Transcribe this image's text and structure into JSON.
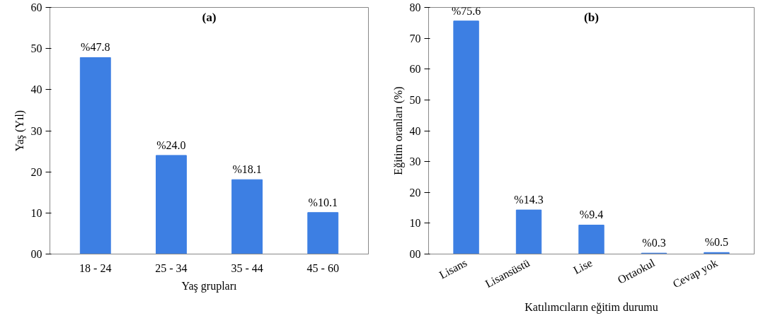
{
  "chart_data": [
    {
      "type": "bar",
      "title": "(a)",
      "xlabel": "Yaş grupları",
      "ylabel": "Yaş (Yıl)",
      "categories": [
        "18 - 24",
        "25 - 34",
        "35 - 44",
        "45 - 60"
      ],
      "values": [
        47.8,
        24.0,
        18.1,
        10.1
      ],
      "value_labels": [
        "%47.8",
        "%24.0",
        "%18.1",
        "%10.1"
      ],
      "color": "#3d7fe3",
      "ylim": [
        0,
        60
      ],
      "yticks": [
        {
          "value": 0,
          "label": "00"
        },
        10,
        20,
        30,
        40,
        50,
        60
      ],
      "grid": false
    },
    {
      "type": "bar",
      "title": "(b)",
      "xlabel": "Katılımcıların eğitim durumu",
      "ylabel": "Eğitim oranları (%)",
      "categories": [
        "Lisans",
        "Lisansüstü",
        "Lise",
        "Ortaokul",
        "Cevap yok"
      ],
      "values": [
        75.6,
        14.3,
        9.4,
        0.3,
        0.5
      ],
      "value_labels": [
        "%75.6",
        "%14.3",
        "%9.4",
        "%0.3",
        "%0.5"
      ],
      "color": "#3d7fe3",
      "ylim": [
        0,
        80
      ],
      "yticks": [
        {
          "value": 0,
          "label": "00"
        },
        10,
        20,
        30,
        40,
        50,
        60,
        70,
        80
      ],
      "grid": false
    }
  ]
}
